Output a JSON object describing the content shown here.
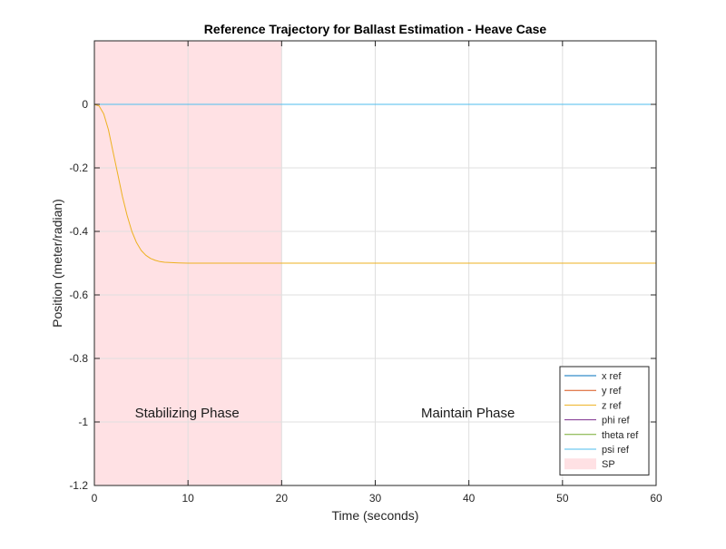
{
  "chart_data": {
    "type": "line",
    "title": "Reference Trajectory for Ballast Estimation - Heave Case",
    "xlabel": "Time (seconds)",
    "ylabel": "Position (meter/radian)",
    "xlim": [
      0,
      60
    ],
    "ylim": [
      -1.2,
      0.2
    ],
    "xticks": [
      0,
      10,
      20,
      30,
      40,
      50,
      60
    ],
    "yticks": [
      0,
      -0.2,
      -0.4,
      -0.6,
      -0.8,
      -1,
      -1.2
    ],
    "xtick_labels": [
      "0",
      "10",
      "20",
      "30",
      "40",
      "50",
      "60"
    ],
    "ytick_labels": [
      "0",
      "-0.2",
      "-0.4",
      "-0.6",
      "-0.8",
      "-1",
      "-1.2"
    ],
    "grid": true,
    "legend_position": "bottom-right",
    "shaded_regions": [
      {
        "name": "SP",
        "x_start": 0,
        "x_end": 20,
        "color": "#ffe1e4"
      }
    ],
    "annotations": [
      {
        "text": "Stabilizing Phase",
        "x": 10,
        "y": -1.0
      },
      {
        "text": "Maintain Phase",
        "x": 40,
        "y": -1.0
      }
    ],
    "x": [
      0,
      0.5,
      1,
      1.5,
      2,
      2.5,
      3,
      3.5,
      4,
      4.5,
      5,
      5.5,
      6,
      6.5,
      7,
      7.5,
      8,
      9,
      10,
      12,
      15,
      20,
      30,
      40,
      50,
      60
    ],
    "series": [
      {
        "name": "x ref",
        "color": "#0072bd",
        "values": [
          0,
          0,
          0,
          0,
          0,
          0,
          0,
          0,
          0,
          0,
          0,
          0,
          0,
          0,
          0,
          0,
          0,
          0,
          0,
          0,
          0,
          0,
          0,
          0,
          0,
          0
        ]
      },
      {
        "name": "y ref",
        "color": "#d95319",
        "values": [
          0,
          0,
          0,
          0,
          0,
          0,
          0,
          0,
          0,
          0,
          0,
          0,
          0,
          0,
          0,
          0,
          0,
          0,
          0,
          0,
          0,
          0,
          0,
          0,
          0,
          0
        ]
      },
      {
        "name": "z ref",
        "color": "#edb120",
        "values": [
          0,
          -0.005,
          -0.03,
          -0.08,
          -0.15,
          -0.22,
          -0.29,
          -0.35,
          -0.4,
          -0.435,
          -0.46,
          -0.475,
          -0.485,
          -0.491,
          -0.495,
          -0.497,
          -0.498,
          -0.499,
          -0.5,
          -0.5,
          -0.5,
          -0.5,
          -0.5,
          -0.5,
          -0.5,
          -0.5
        ]
      },
      {
        "name": "phi ref",
        "color": "#7e2f8e",
        "values": [
          0,
          0,
          0,
          0,
          0,
          0,
          0,
          0,
          0,
          0,
          0,
          0,
          0,
          0,
          0,
          0,
          0,
          0,
          0,
          0,
          0,
          0,
          0,
          0,
          0,
          0
        ]
      },
      {
        "name": "theta ref",
        "color": "#77ac30",
        "values": [
          0,
          0,
          0,
          0,
          0,
          0,
          0,
          0,
          0,
          0,
          0,
          0,
          0,
          0,
          0,
          0,
          0,
          0,
          0,
          0,
          0,
          0,
          0,
          0,
          0,
          0
        ]
      },
      {
        "name": "psi ref",
        "color": "#4dbeee",
        "values": [
          0,
          0,
          0,
          0,
          0,
          0,
          0,
          0,
          0,
          0,
          0,
          0,
          0,
          0,
          0,
          0,
          0,
          0,
          0,
          0,
          0,
          0,
          0,
          0,
          0,
          0
        ]
      }
    ],
    "legend_entries": [
      "x ref",
      "y ref",
      "z ref",
      "phi ref",
      "theta ref",
      "psi ref",
      "SP"
    ]
  }
}
